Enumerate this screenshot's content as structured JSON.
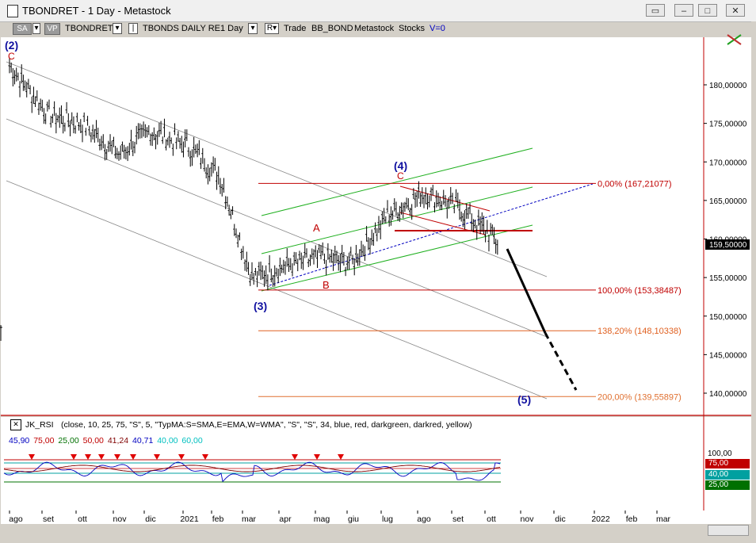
{
  "window": {
    "title": "TBONDRET - 1 Day - Metastock"
  },
  "toolbar": {
    "sa": "SA",
    "vp": "VP",
    "symbol": "TBONDRET",
    "name": "TBONDS DAILY RE",
    "period": "1 Day",
    "r": "R",
    "trade": "Trade",
    "bb": "BB_BOND",
    "metastock": "Metastock",
    "stocks": "Stocks",
    "v": "V=0"
  },
  "price_axis": {
    "ticks": [
      "180,00000",
      "175,00000",
      "170,00000",
      "165,00000",
      "160,00000",
      "155,00000",
      "150,00000",
      "145,00000",
      "140,00000"
    ],
    "last_price": "159,50000"
  },
  "fib_levels": [
    {
      "label": "0,00% (167,21077)",
      "value": 167.21077,
      "color": "#c00000"
    },
    {
      "label": "100,00% (153,38487)",
      "value": 153.38487,
      "color": "#c00000"
    },
    {
      "label": "138,20% (148,10338)",
      "value": 148.10338,
      "color": "#e06020"
    },
    {
      "label": "200,00% (139,55897)",
      "value": 139.55897,
      "color": "#e07030"
    }
  ],
  "wave_labels": {
    "w2": "(2)",
    "c1": "C",
    "w3": "(3)",
    "a": "A",
    "b": "B",
    "w4": "(4)",
    "c2": "C",
    "w5": "(5)"
  },
  "indicator": {
    "name": "JK_RSI",
    "params": "(close, 10, 25, 75, \"S\", 5, \"TypMA:S=SMA,E=EMA,W=WMA\", \"S\", \"S\", 34, blue, red, darkgreen, darkred, yellow)",
    "values": [
      {
        "text": "45,90",
        "color": "#0000c0"
      },
      {
        "text": "75,00",
        "color": "#c00000"
      },
      {
        "text": "25,00",
        "color": "#007000"
      },
      {
        "text": "50,00",
        "color": "#c00000"
      },
      {
        "text": "41,24",
        "color": "#800000"
      },
      {
        "text": "40,71",
        "color": "#0000c0"
      },
      {
        "text": "40,00",
        "color": "#00c0c0"
      },
      {
        "text": "60,00",
        "color": "#00c0c0"
      }
    ],
    "axis_top": "100,00",
    "boxes": [
      {
        "text": "75,00",
        "color": "#c00000"
      },
      {
        "text": "40,00",
        "color": "#00a0a0"
      },
      {
        "text": "25,00",
        "color": "#007000"
      }
    ]
  },
  "x_axis": [
    "ago",
    "set",
    "ott",
    "nov",
    "dic",
    "2021",
    "feb",
    "mar",
    "apr",
    "mag",
    "giu",
    "lug",
    "ago",
    "set",
    "ott",
    "nov",
    "dic",
    "2022",
    "feb",
    "mar"
  ],
  "chart_data": {
    "type": "line",
    "title": "TBONDRET - 1 Day",
    "x": [
      "ago",
      "set",
      "ott",
      "nov",
      "dic",
      "2021",
      "feb",
      "mar",
      "apr",
      "mag",
      "giu",
      "lug",
      "ago",
      "set",
      "ott"
    ],
    "series": [
      {
        "name": "",
        "values": [
          182.5,
          176,
          175,
          171,
          174,
          172,
          168,
          155,
          156.5,
          157.5,
          157,
          163,
          166,
          164,
          159.5
        ]
      }
    ],
    "projection": {
      "from": 159.5,
      "to": 140.5
    },
    "ylim": [
      137,
      186
    ],
    "grid": false
  }
}
